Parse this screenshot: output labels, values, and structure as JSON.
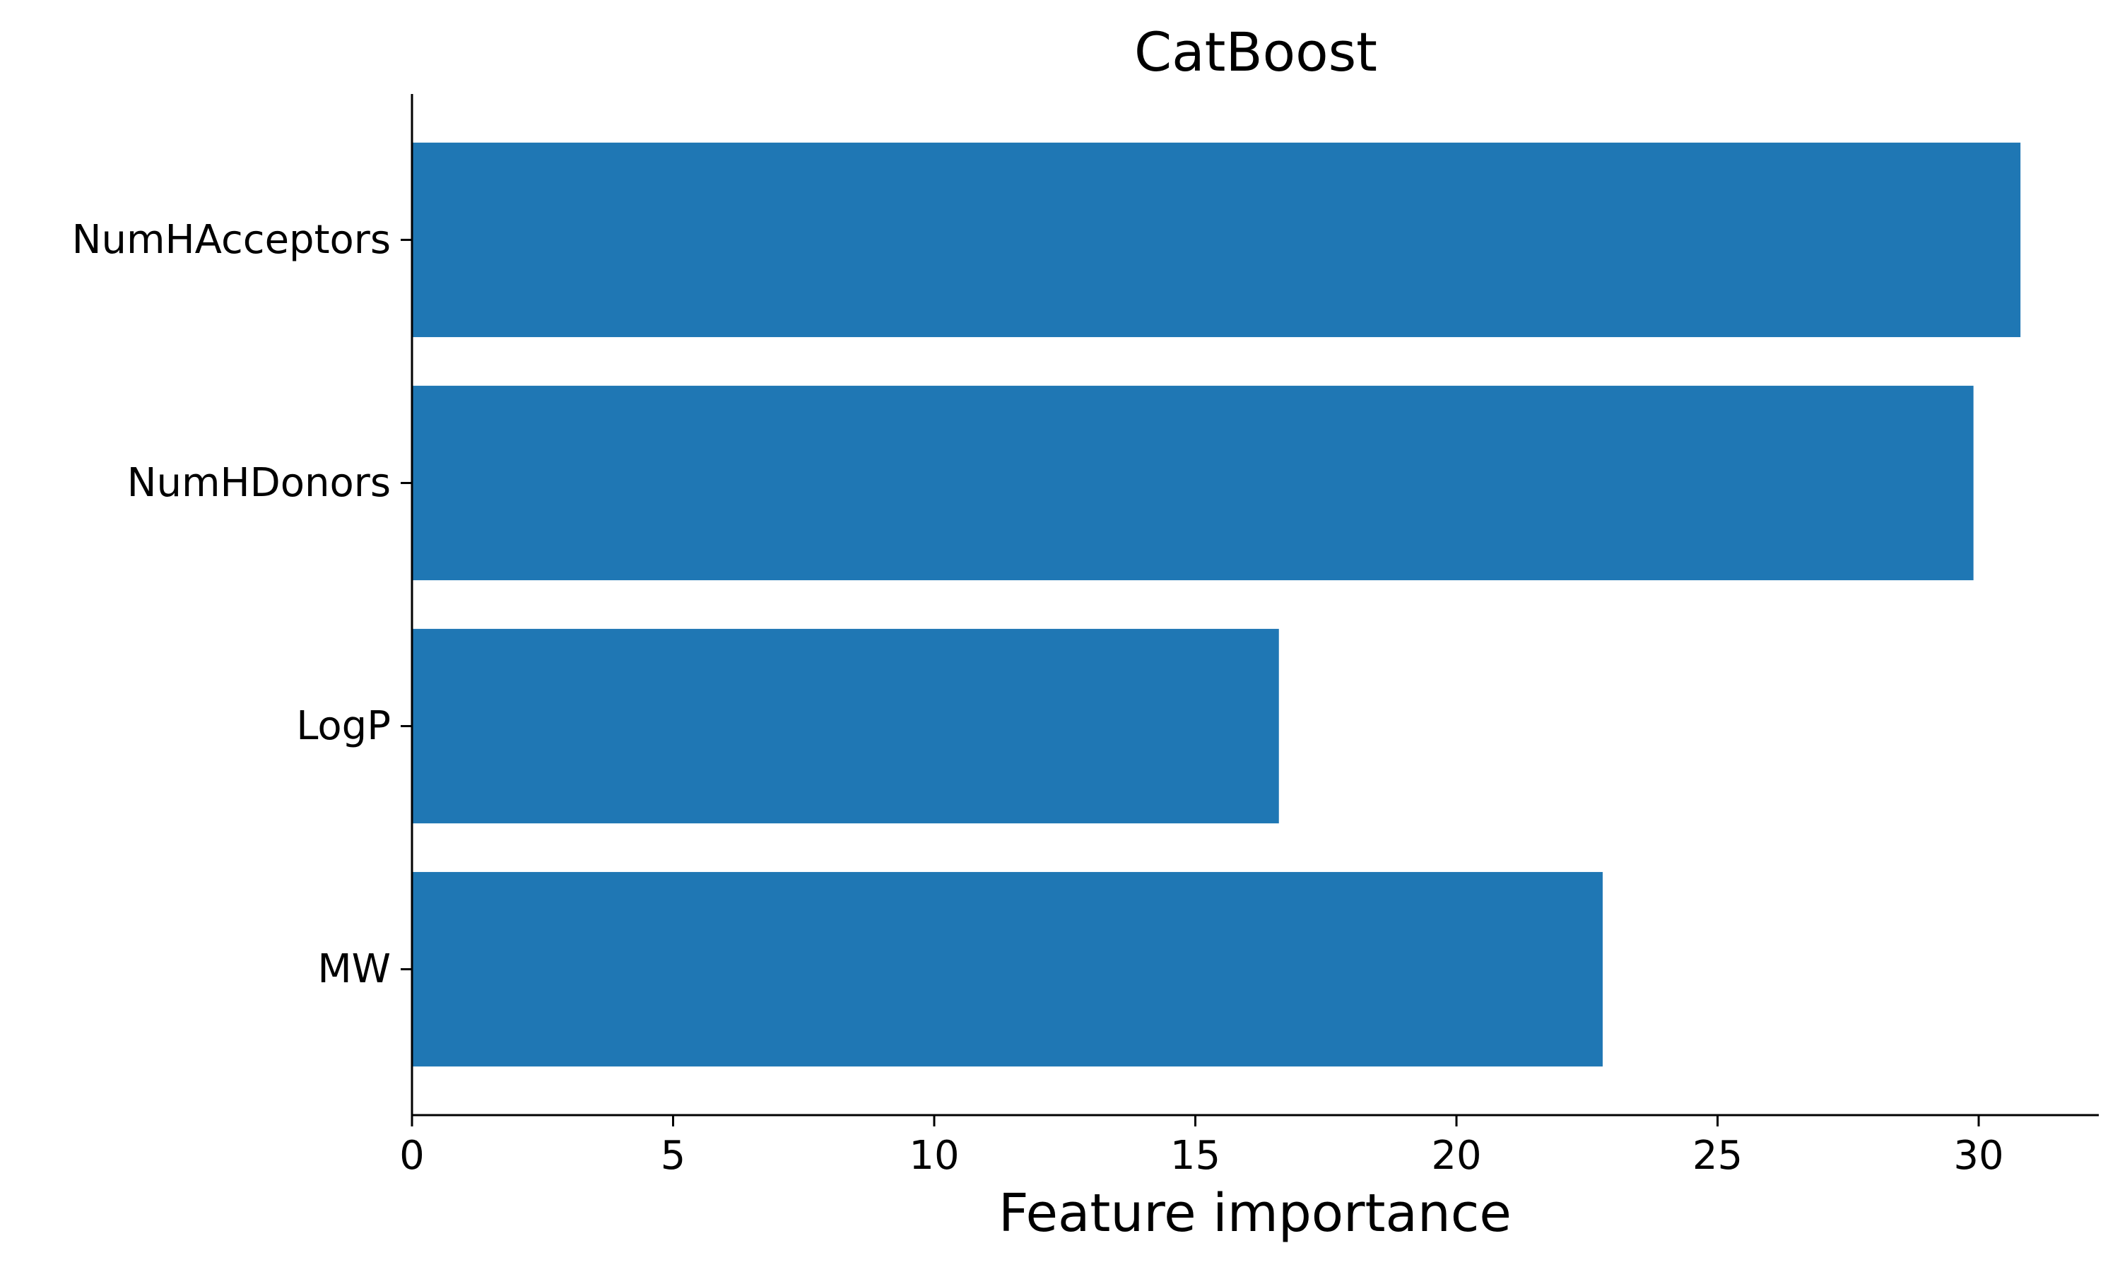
{
  "chart_data": {
    "type": "bar",
    "orientation": "horizontal",
    "title": "CatBoost",
    "xlabel": "Feature importance",
    "ylabel": "",
    "categories": [
      "MW",
      "LogP",
      "NumHDonors",
      "NumHAcceptors"
    ],
    "values": [
      22.8,
      16.6,
      29.9,
      30.8
    ],
    "xlim": [
      0,
      32.3
    ],
    "xticks": [
      0,
      5,
      10,
      15,
      20,
      25,
      30
    ],
    "bar_color": "#1f77b4",
    "grid": false,
    "legend": "none"
  }
}
